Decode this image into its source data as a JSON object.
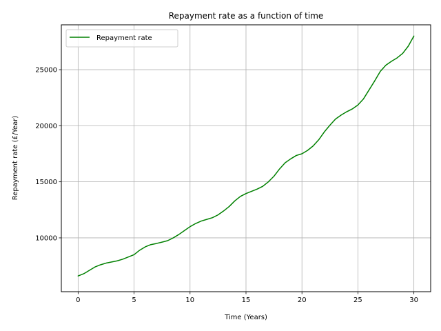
{
  "chart_data": {
    "type": "line",
    "title": "Repayment rate as a function of time",
    "xlabel": "Time (Years)",
    "ylabel": "Repayment rate (£/Year)",
    "xlim": [
      -1.5,
      31.5
    ],
    "ylim": [
      5200,
      29000
    ],
    "xticks": [
      0,
      5,
      10,
      15,
      20,
      25,
      30
    ],
    "yticks": [
      10000,
      15000,
      20000,
      25000
    ],
    "grid": true,
    "legend_position": "top-left",
    "series": [
      {
        "name": "Repayment rate",
        "color": "#008000",
        "x": [
          0,
          0.5,
          1,
          1.5,
          2,
          2.5,
          3,
          3.5,
          4,
          4.5,
          5,
          5.5,
          6,
          6.5,
          7,
          7.5,
          8,
          8.5,
          9,
          9.5,
          10,
          10.5,
          11,
          11.5,
          12,
          12.5,
          13,
          13.5,
          14,
          14.5,
          15,
          15.5,
          16,
          16.5,
          17,
          17.5,
          18,
          18.5,
          19,
          19.5,
          20,
          20.5,
          21,
          21.5,
          22,
          22.5,
          23,
          23.5,
          24,
          24.5,
          25,
          25.5,
          26,
          26.5,
          27,
          27.5,
          28,
          28.5,
          29,
          29.5,
          30
        ],
        "y": [
          6600,
          6800,
          7100,
          7400,
          7600,
          7750,
          7850,
          7950,
          8100,
          8300,
          8500,
          8900,
          9200,
          9400,
          9500,
          9620,
          9750,
          10000,
          10300,
          10650,
          11000,
          11280,
          11500,
          11650,
          11800,
          12050,
          12400,
          12800,
          13300,
          13700,
          13950,
          14150,
          14350,
          14600,
          15000,
          15500,
          16150,
          16700,
          17050,
          17350,
          17500,
          17800,
          18200,
          18750,
          19450,
          20050,
          20600,
          20950,
          21250,
          21500,
          21850,
          22400,
          23200,
          24000,
          24850,
          25400,
          25750,
          26050,
          26450,
          27100,
          28000
        ]
      }
    ]
  }
}
